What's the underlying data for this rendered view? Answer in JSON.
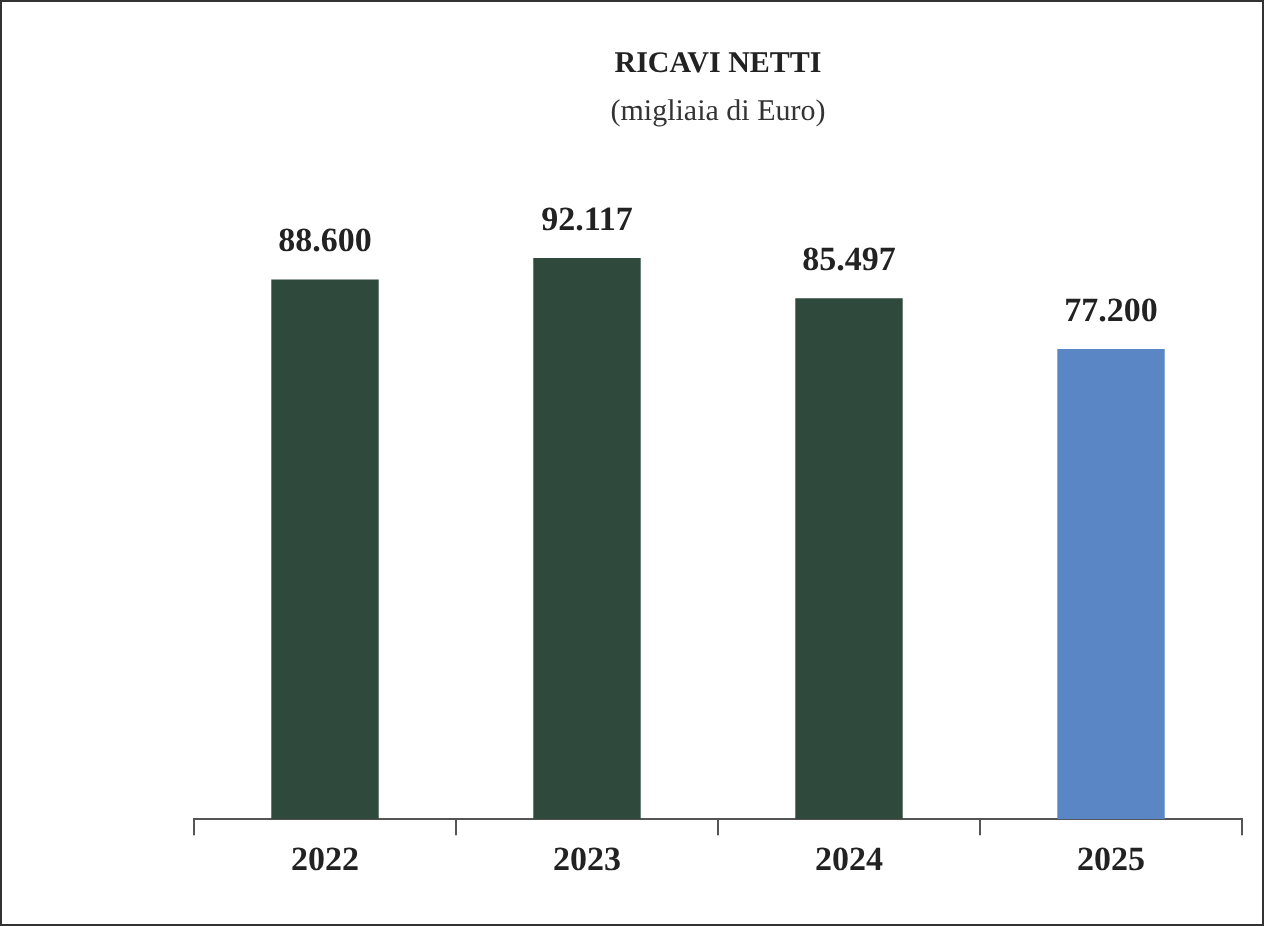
{
  "chart_data": {
    "type": "bar",
    "title": "RICAVI NETTI",
    "subtitle": "(migliaia di Euro)",
    "categories": [
      "2022",
      "2023",
      "2024",
      "2025"
    ],
    "values": [
      88600,
      92117,
      85497,
      77200
    ],
    "value_labels": [
      "88.600",
      "92.117",
      "85.497",
      "77.200"
    ],
    "colors": [
      "#2f4a3c",
      "#2f4a3c",
      "#2f4a3c",
      "#5a86c6"
    ],
    "grid": false,
    "legend": false
  }
}
